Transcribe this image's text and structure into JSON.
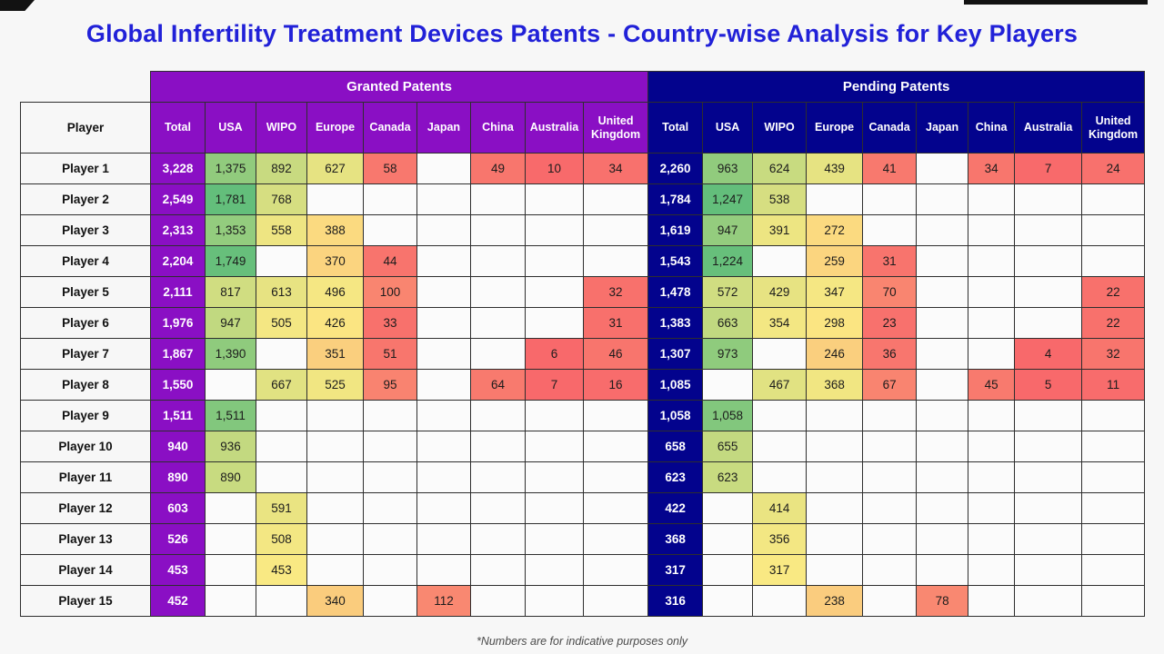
{
  "title": "Global Infertility Treatment Devices Patents - Country-wise Analysis for Key Players",
  "footnote": "*Numbers are for indicative purposes only",
  "colors": {
    "title": "#2121D8",
    "granted_header": "#8A0FC4",
    "pending_header": "#03038D",
    "scale_min": "#F8696B",
    "scale_mid": "#FBE983",
    "scale_max": "#63BE7B"
  },
  "chart_data": {
    "type": "table",
    "title": "Global Infertility Treatment Devices Patents - Country-wise Analysis for Key Players",
    "player_header": "Player",
    "groups": [
      "Granted Patents",
      "Pending Patents"
    ],
    "columns": [
      "Total",
      "USA",
      "WIPO",
      "Europe",
      "Canada",
      "Japan",
      "China",
      "Australia",
      "United Kingdom"
    ],
    "heatmap_note": "country cells use red-yellow-green 3-color scale per section; Total column solid purple (granted) / navy (pending)",
    "rows": [
      {
        "player": "Player 1",
        "granted": [
          3228,
          1375,
          892,
          627,
          58,
          null,
          49,
          10,
          34
        ],
        "pending": [
          2260,
          963,
          624,
          439,
          41,
          null,
          34,
          7,
          24
        ]
      },
      {
        "player": "Player 2",
        "granted": [
          2549,
          1781,
          768,
          null,
          null,
          null,
          null,
          null,
          null
        ],
        "pending": [
          1784,
          1247,
          538,
          null,
          null,
          null,
          null,
          null,
          null
        ]
      },
      {
        "player": "Player 3",
        "granted": [
          2313,
          1353,
          558,
          388,
          null,
          null,
          null,
          null,
          null
        ],
        "pending": [
          1619,
          947,
          391,
          272,
          null,
          null,
          null,
          null,
          null
        ]
      },
      {
        "player": "Player 4",
        "granted": [
          2204,
          1749,
          null,
          370,
          44,
          null,
          null,
          null,
          null
        ],
        "pending": [
          1543,
          1224,
          null,
          259,
          31,
          null,
          null,
          null,
          null
        ]
      },
      {
        "player": "Player 5",
        "granted": [
          2111,
          817,
          613,
          496,
          100,
          null,
          null,
          null,
          32
        ],
        "pending": [
          1478,
          572,
          429,
          347,
          70,
          null,
          null,
          null,
          22
        ]
      },
      {
        "player": "Player 6",
        "granted": [
          1976,
          947,
          505,
          426,
          33,
          null,
          null,
          null,
          31
        ],
        "pending": [
          1383,
          663,
          354,
          298,
          23,
          null,
          null,
          null,
          22
        ]
      },
      {
        "player": "Player 7",
        "granted": [
          1867,
          1390,
          null,
          351,
          51,
          null,
          null,
          6,
          46
        ],
        "pending": [
          1307,
          973,
          null,
          246,
          36,
          null,
          null,
          4,
          32
        ]
      },
      {
        "player": "Player 8",
        "granted": [
          1550,
          null,
          667,
          525,
          95,
          null,
          64,
          7,
          16
        ],
        "pending": [
          1085,
          null,
          467,
          368,
          67,
          null,
          45,
          5,
          11
        ]
      },
      {
        "player": "Player 9",
        "granted": [
          1511,
          1511,
          null,
          null,
          null,
          null,
          null,
          null,
          null
        ],
        "pending": [
          1058,
          1058,
          null,
          null,
          null,
          null,
          null,
          null,
          null
        ]
      },
      {
        "player": "Player 10",
        "granted": [
          940,
          936,
          null,
          null,
          null,
          null,
          null,
          null,
          null
        ],
        "pending": [
          658,
          655,
          null,
          null,
          null,
          null,
          null,
          null,
          null
        ]
      },
      {
        "player": "Player 11",
        "granted": [
          890,
          890,
          null,
          null,
          null,
          null,
          null,
          null,
          null
        ],
        "pending": [
          623,
          623,
          null,
          null,
          null,
          null,
          null,
          null,
          null
        ]
      },
      {
        "player": "Player 12",
        "granted": [
          603,
          null,
          591,
          null,
          null,
          null,
          null,
          null,
          null
        ],
        "pending": [
          422,
          null,
          414,
          null,
          null,
          null,
          null,
          null,
          null
        ]
      },
      {
        "player": "Player 13",
        "granted": [
          526,
          null,
          508,
          null,
          null,
          null,
          null,
          null,
          null
        ],
        "pending": [
          368,
          null,
          356,
          null,
          null,
          null,
          null,
          null,
          null
        ]
      },
      {
        "player": "Player 14",
        "granted": [
          453,
          null,
          453,
          null,
          null,
          null,
          null,
          null,
          null
        ],
        "pending": [
          317,
          null,
          317,
          null,
          null,
          null,
          null,
          null,
          null
        ]
      },
      {
        "player": "Player 15",
        "granted": [
          452,
          null,
          null,
          340,
          null,
          112,
          null,
          null,
          null
        ],
        "pending": [
          316,
          null,
          null,
          238,
          null,
          78,
          null,
          null,
          null
        ]
      }
    ]
  }
}
